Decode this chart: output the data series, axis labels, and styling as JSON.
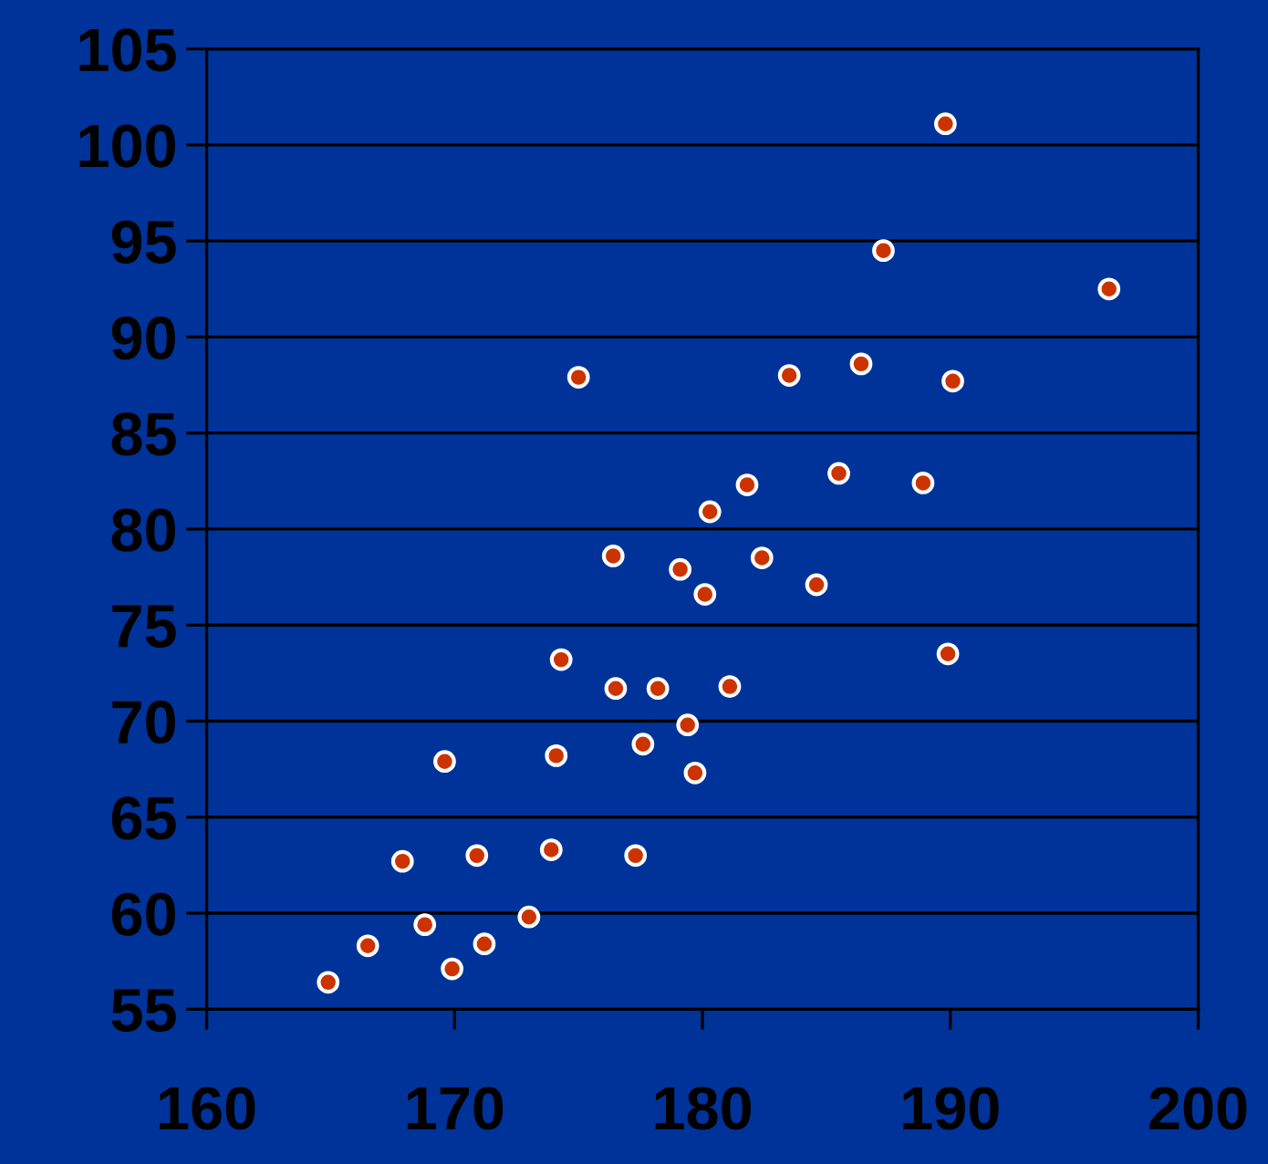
{
  "chart_data": {
    "type": "scatter",
    "x": [
      189.8,
      187.3,
      196.4,
      175.0,
      183.5,
      186.4,
      190.1,
      185.5,
      181.8,
      188.9,
      180.3,
      176.4,
      179.1,
      182.4,
      180.1,
      184.6,
      174.3,
      189.9,
      176.5,
      178.2,
      181.1,
      179.4,
      169.6,
      174.1,
      177.6,
      179.7,
      167.9,
      170.9,
      173.9,
      177.3,
      173.0,
      168.8,
      166.5,
      171.2,
      169.9,
      164.9
    ],
    "values": [
      101.1,
      94.5,
      92.5,
      87.9,
      88.0,
      88.6,
      87.7,
      82.9,
      82.3,
      82.4,
      80.9,
      78.6,
      77.9,
      78.5,
      76.6,
      77.1,
      73.2,
      73.5,
      71.7,
      71.7,
      71.8,
      69.8,
      67.9,
      68.2,
      68.8,
      67.3,
      62.7,
      63.0,
      63.3,
      63.0,
      59.8,
      59.4,
      58.3,
      58.4,
      57.1,
      56.4
    ],
    "color": "#cc3300",
    "marker": "circle",
    "xlim": [
      160,
      200
    ],
    "xticks": [
      160,
      170,
      180,
      190,
      200
    ],
    "ylim": [
      55,
      105
    ],
    "yticks": [
      55,
      60,
      65,
      70,
      75,
      80,
      85,
      90,
      95,
      100,
      105
    ],
    "grid": "y"
  }
}
